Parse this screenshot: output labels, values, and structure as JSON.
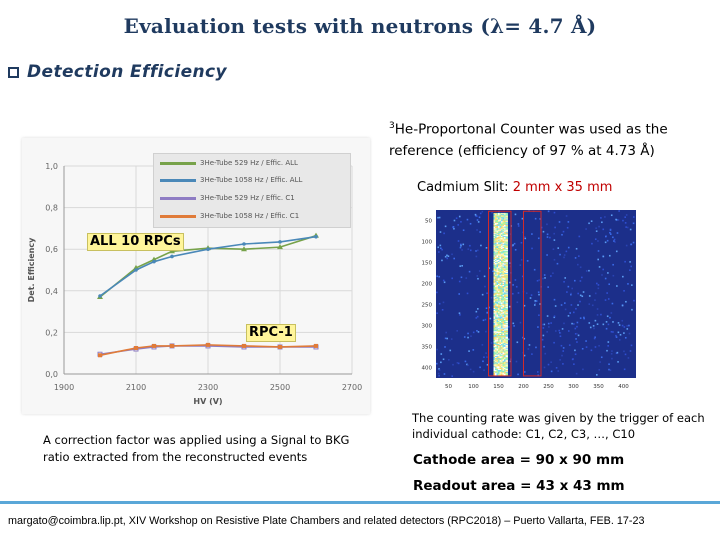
{
  "title": "Evaluation tests with neutrons (λ= 4.7 Å)",
  "bullet": "Detection Efficiency",
  "reference_note": {
    "superscript": "3",
    "text": "He-Proportonal Counter was used as the reference (efficiency of 97 % at 4.73 Å)"
  },
  "slit": {
    "label": "Cadmium Slit: ",
    "value": "2 mm x 35 mm",
    "value_color": "#c00000"
  },
  "callouts": {
    "all_rpcs": "ALL 10 RPCs",
    "rpc1": "RPC-1"
  },
  "correction_note": "A correction factor was applied using a Signal to BKG ratio  extracted  from the reconstructed events",
  "counting_note": "The counting rate was given by the  trigger of each individual cathode: C1, C2, C3, …, C10",
  "cathode_area": "Cathode area = 90 x 90 mm",
  "readout_area": "Readout area = 43 x 43 mm",
  "footer": "margato@coimbra.lip.pt,  XIV Workshop on Resistive Plate Chambers and related detectors (RPC2018) – Puerto Vallarta, FEB. 17-23",
  "colors": {
    "title": "#1f3a5f",
    "green": "#77a24a",
    "blue": "#4a88b8",
    "purple": "#8e7cc3",
    "orange": "#e07b39",
    "footer_line": "#5aa7d8"
  },
  "chart_data": [
    {
      "type": "line",
      "title": "",
      "xlabel": "HV (V)",
      "ylabel": "Det. Efficiency",
      "xlim": [
        1900,
        2700
      ],
      "ylim": [
        0.0,
        1.0
      ],
      "xticks": [
        1900,
        2100,
        2300,
        2500,
        2700
      ],
      "xtick_labels": [
        "1900",
        "2100",
        "2300",
        "2500",
        "2700"
      ],
      "yticks": [
        0.0,
        0.2,
        0.4,
        0.6,
        0.8,
        1.0
      ],
      "ytick_labels": [
        "0,0",
        "0,2",
        "0,4",
        "0,6",
        "0,8",
        "1,0"
      ],
      "legend_position": "top-right",
      "series": [
        {
          "name": "3He-Tube 529 Hz / Effic. ALL",
          "color": "#77a24a",
          "x": [
            2000,
            2100,
            2150,
            2200,
            2300,
            2400,
            2500,
            2600
          ],
          "y": [
            0.37,
            0.51,
            0.55,
            0.59,
            0.605,
            0.6,
            0.61,
            0.665
          ]
        },
        {
          "name": "3He-Tube 1058 Hz / Effic. ALL",
          "color": "#4a88b8",
          "x": [
            2000,
            2100,
            2150,
            2200,
            2300,
            2400,
            2500,
            2600
          ],
          "y": [
            0.375,
            0.5,
            0.54,
            0.565,
            0.6,
            0.625,
            0.635,
            0.66
          ]
        },
        {
          "name": "3He-Tube 529 Hz / Effic. C1",
          "color": "#8e7cc3",
          "x": [
            2000,
            2100,
            2150,
            2200,
            2300,
            2400,
            2500,
            2600
          ],
          "y": [
            0.095,
            0.12,
            0.13,
            0.135,
            0.135,
            0.13,
            0.13,
            0.13
          ]
        },
        {
          "name": "3He-Tube 1058 Hz / Effic. C1",
          "color": "#e07b39",
          "x": [
            2000,
            2100,
            2150,
            2200,
            2300,
            2400,
            2500,
            2600
          ],
          "y": [
            0.09,
            0.125,
            0.135,
            0.135,
            0.14,
            0.135,
            0.13,
            0.135
          ]
        }
      ]
    },
    {
      "type": "heatmap",
      "title": "",
      "x_tick_labels": [
        "50",
        "100",
        "150",
        "200",
        "250",
        "300",
        "350",
        "400"
      ],
      "y_tick_labels": [
        "50",
        "100",
        "150",
        "200",
        "250",
        "300",
        "350",
        "400"
      ],
      "description_values": {
        "hot_strip_x_range": [
          140,
          165
        ],
        "slit_box_x_range": [
          130,
          175
        ],
        "second_box_x_range": [
          200,
          235
        ]
      }
    }
  ]
}
